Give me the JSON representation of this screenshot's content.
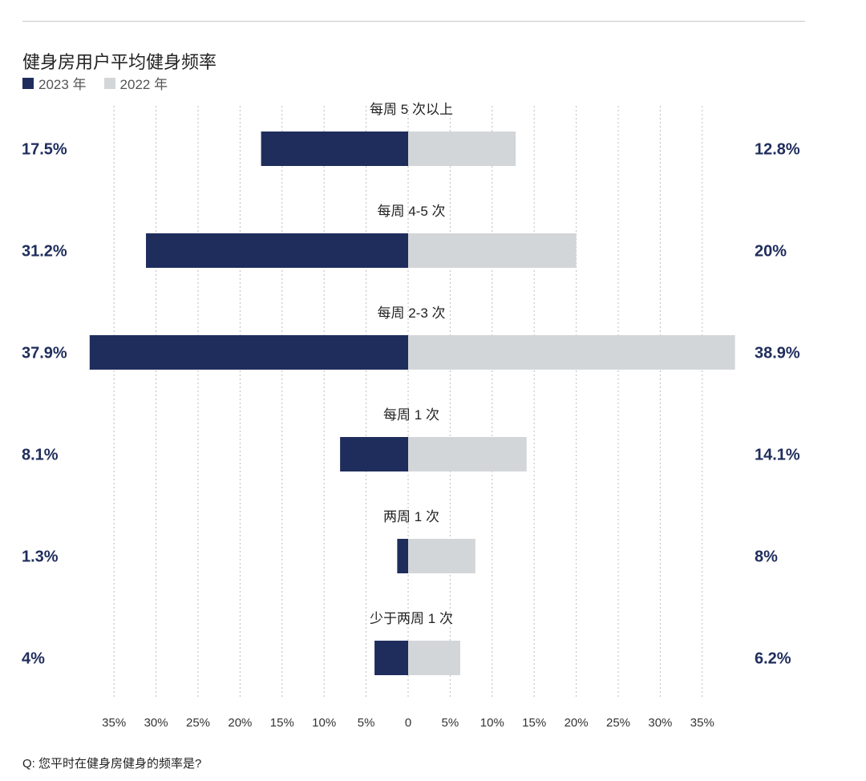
{
  "colors": {
    "y2023": "#1f2d5c",
    "y2022": "#d3d6d9",
    "value_text": "#1f2d5c",
    "grid": "#bdbdbd"
  },
  "chart_data": {
    "type": "bar",
    "orientation": "horizontal-diverging",
    "title": "健身房用户平均健身频率",
    "legend_position": "top-left",
    "grid": true,
    "categories": [
      "每周 5 次以上",
      "每周 4-5 次",
      "每周 2-3 次",
      "每周 1 次",
      "两周 1 次",
      "少于两周 1 次"
    ],
    "series": [
      {
        "name": "2023 年",
        "side": "left",
        "values": [
          17.5,
          31.2,
          37.9,
          8.1,
          1.3,
          4
        ],
        "labels": [
          "17.5%",
          "31.2%",
          "37.9%",
          "8.1%",
          "1.3%",
          "4%"
        ]
      },
      {
        "name": "2022 年",
        "side": "right",
        "values": [
          12.8,
          20,
          38.9,
          14.1,
          8,
          6.2
        ],
        "labels": [
          "12.8%",
          "20%",
          "38.9%",
          "14.1%",
          "8%",
          "6.2%"
        ]
      }
    ],
    "x_ticks": [
      "35%",
      "30%",
      "25%",
      "20%",
      "15%",
      "10%",
      "5%",
      "0",
      "5%",
      "10%",
      "15%",
      "20%",
      "25%",
      "30%",
      "35%"
    ],
    "tick_values": [
      -35,
      -30,
      -25,
      -20,
      -15,
      -10,
      -5,
      0,
      5,
      10,
      15,
      20,
      25,
      30,
      35
    ],
    "xlim": [
      -38,
      39
    ],
    "footnote": "Q: 您平时在健身房健身的频率是?"
  }
}
